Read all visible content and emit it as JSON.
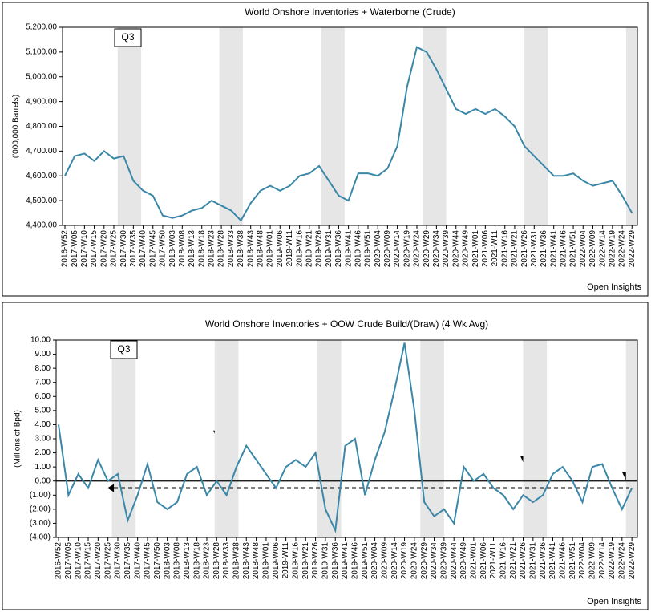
{
  "chart_data": [
    {
      "type": "line",
      "title": "World Onshore Inventories + Waterborne (Crude)",
      "y_label": "('000,000 Barrels)",
      "footer": "Open Insights",
      "annotation": "Q3",
      "color": "#3a87a8",
      "categories": [
        "2016-W52",
        "2017-W05",
        "2017-W10",
        "2017-W15",
        "2017-W20",
        "2017-W25",
        "2017-W30",
        "2017-W35",
        "2017-W40",
        "2017-W45",
        "2017-W50",
        "2018-W03",
        "2018-W08",
        "2018-W13",
        "2018-W18",
        "2018-W23",
        "2018-W28",
        "2018-W33",
        "2018-W38",
        "2018-W43",
        "2018-W48",
        "2019-W01",
        "2019-W06",
        "2019-W11",
        "2019-W16",
        "2019-W21",
        "2019-W26",
        "2019-W31",
        "2019-W36",
        "2019-W41",
        "2019-W46",
        "2019-W51",
        "2020-W04",
        "2020-W09",
        "2020-W14",
        "2020-W19",
        "2020-W24",
        "2020-W29",
        "2020-W34",
        "2020-W39",
        "2020-W44",
        "2020-W49",
        "2021-W01",
        "2021-W06",
        "2021-W11",
        "2021-W16",
        "2021-W21",
        "2021-W26",
        "2021-W31",
        "2021-W36",
        "2021-W41",
        "2021-W46",
        "2021-W51",
        "2022-W04",
        "2022-W09",
        "2022-W14",
        "2022-W19",
        "2022-W24",
        "2022-W29"
      ],
      "values": [
        4600,
        4680,
        4690,
        4660,
        4700,
        4670,
        4680,
        4580,
        4540,
        4520,
        4440,
        4430,
        4440,
        4460,
        4470,
        4500,
        4480,
        4460,
        4420,
        4490,
        4540,
        4560,
        4540,
        4560,
        4600,
        4610,
        4640,
        4580,
        4520,
        4500,
        4610,
        4610,
        4600,
        4630,
        4720,
        4960,
        5120,
        5100,
        5030,
        4950,
        4870,
        4850,
        4870,
        4850,
        4870,
        4840,
        4800,
        4720,
        4680,
        4640,
        4600,
        4600,
        4610,
        4580,
        4560,
        4570,
        4580,
        4520,
        4450
      ],
      "ylim": [
        4400,
        5200
      ],
      "yticks": [
        {
          "value": 4400,
          "label": "4,400.00"
        },
        {
          "value": 4500,
          "label": "4,500.00"
        },
        {
          "value": 4600,
          "label": "4,600.00"
        },
        {
          "value": 4700,
          "label": "4,700.00"
        },
        {
          "value": 4800,
          "label": "4,800.00"
        },
        {
          "value": 4900,
          "label": "4,900.00"
        },
        {
          "value": 5000,
          "label": "5,000.00"
        },
        {
          "value": 5100,
          "label": "5,100.00"
        },
        {
          "value": 5200,
          "label": "5,200.00"
        }
      ]
    },
    {
      "type": "line",
      "title": "World Onshore Inventories + OOW Crude Build/(Draw) (4 Wk Avg)",
      "y_label": "(Millions of Bpd)",
      "footer": "Open Insights",
      "annotation": "Q3",
      "color": "#3a87a8",
      "categories": [
        "2016-W52",
        "2017-W05",
        "2017-W10",
        "2017-W15",
        "2017-W20",
        "2017-W25",
        "2017-W30",
        "2017-W35",
        "2017-W40",
        "2017-W45",
        "2017-W50",
        "2018-W03",
        "2018-W08",
        "2018-W13",
        "2018-W18",
        "2018-W23",
        "2018-W28",
        "2018-W33",
        "2018-W38",
        "2018-W43",
        "2018-W48",
        "2019-W01",
        "2019-W06",
        "2019-W11",
        "2019-W16",
        "2019-W21",
        "2019-W26",
        "2019-W31",
        "2019-W36",
        "2019-W41",
        "2019-W46",
        "2019-W51",
        "2020-W04",
        "2020-W09",
        "2020-W14",
        "2020-W19",
        "2020-W24",
        "2020-W29",
        "2020-W34",
        "2020-W39",
        "2020-W44",
        "2020-W49",
        "2021-W01",
        "2021-W06",
        "2021-W11",
        "2021-W16",
        "2021-W21",
        "2021-W26",
        "2021-W31",
        "2021-W36",
        "2021-W41",
        "2021-W46",
        "2021-W51",
        "2022-W04",
        "2022-W09",
        "2022-W14",
        "2022-W19",
        "2022-W24",
        "2022-W29"
      ],
      "values": [
        4.0,
        -1.0,
        0.5,
        -0.5,
        1.5,
        0.0,
        0.5,
        -2.8,
        -1.0,
        1.2,
        -1.5,
        -2.0,
        -1.5,
        0.5,
        1.0,
        -1.0,
        0.0,
        -1.0,
        1.0,
        2.5,
        1.5,
        0.5,
        -0.5,
        1.0,
        1.5,
        1.0,
        2.0,
        -2.0,
        -3.5,
        2.5,
        3.0,
        -1.0,
        1.5,
        3.5,
        6.5,
        9.8,
        5.0,
        -1.5,
        -2.5,
        -2.0,
        -3.0,
        1.0,
        0.0,
        0.5,
        -0.5,
        -1.0,
        -2.0,
        -1.0,
        -1.5,
        -1.0,
        0.5,
        1.0,
        0.0,
        -1.5,
        1.0,
        1.2,
        -0.5,
        -2.0,
        -0.5
      ],
      "ylim": [
        -4,
        10
      ],
      "reference_line": -0.5,
      "yticks": [
        {
          "value": -4,
          "label": "(4.00)"
        },
        {
          "value": -3,
          "label": "(3.00)"
        },
        {
          "value": -2,
          "label": "(2.00)"
        },
        {
          "value": -1,
          "label": "(1.00)"
        },
        {
          "value": 0,
          "label": "0.00"
        },
        {
          "value": 1,
          "label": "1.00"
        },
        {
          "value": 2,
          "label": "2.00"
        },
        {
          "value": 3,
          "label": "3.00"
        },
        {
          "value": 4,
          "label": "4.00"
        },
        {
          "value": 5,
          "label": "5.00"
        },
        {
          "value": 6,
          "label": "6.00"
        },
        {
          "value": 7,
          "label": "7.00"
        },
        {
          "value": 8,
          "label": "8.00"
        },
        {
          "value": 9,
          "label": "9.00"
        },
        {
          "value": 10,
          "label": "10.00"
        }
      ]
    }
  ]
}
